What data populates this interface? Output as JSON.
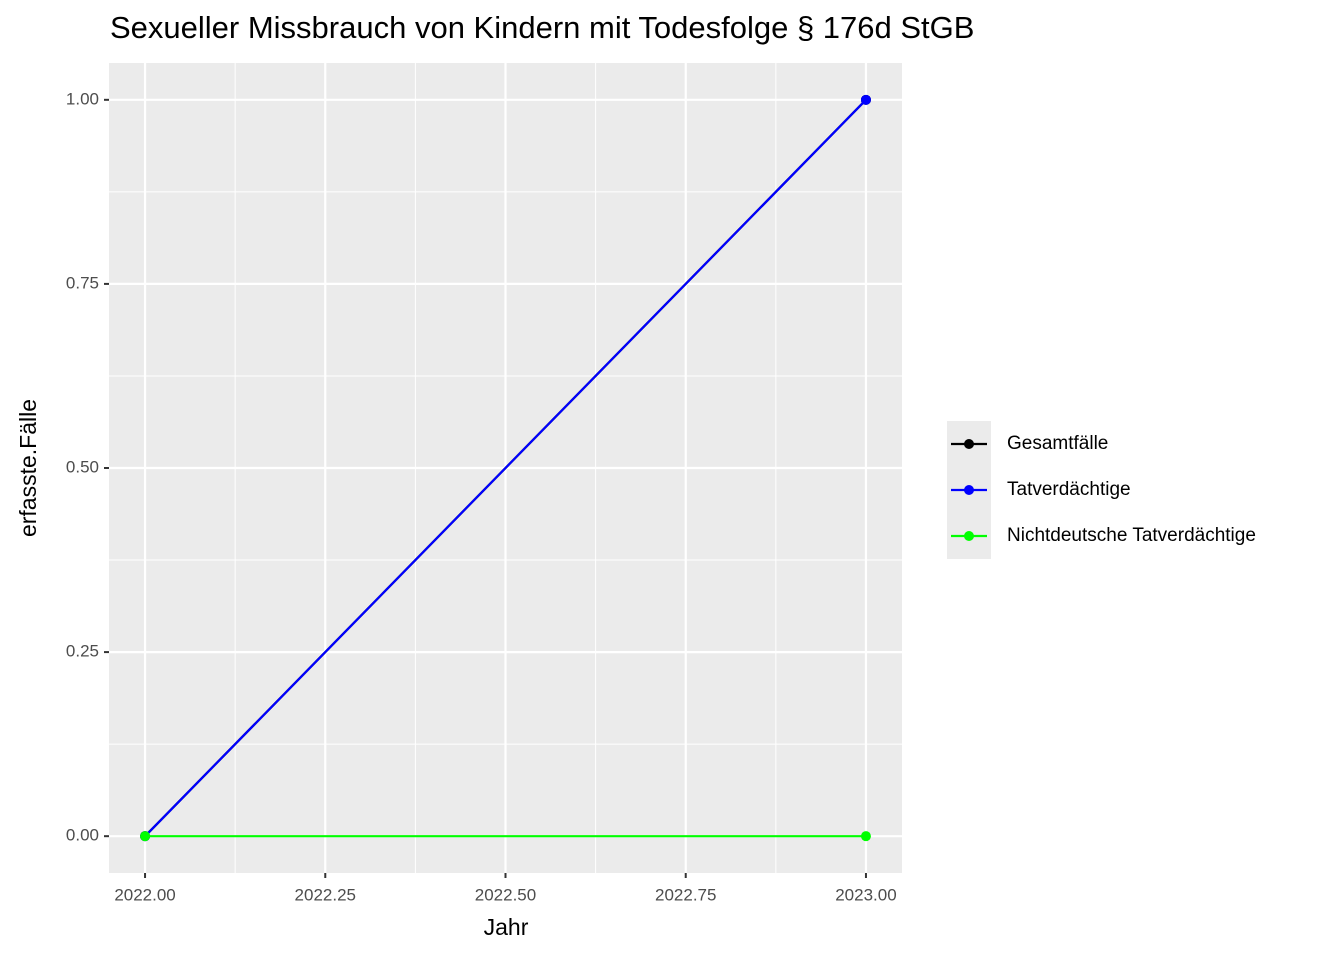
{
  "chart_data": {
    "type": "line",
    "title": "Sexueller Missbrauch von Kindern mit Todesfolge § 176d StGB",
    "x_label": "Jahr",
    "y_label": "erfasste.Fälle",
    "x": [
      2022,
      2023
    ],
    "series": [
      {
        "name": "Gesamtfälle",
        "color": "#000000",
        "values": [
          0,
          1
        ]
      },
      {
        "name": "Tatverdächtige",
        "color": "#0000ff",
        "values": [
          0,
          1
        ]
      },
      {
        "name": "Nichtdeutsche Tatverdächtige",
        "color": "#00ff00",
        "values": [
          0,
          0
        ]
      }
    ],
    "xlim": [
      2021.95,
      2023.05
    ],
    "ylim": [
      -0.05,
      1.05
    ],
    "xticks": [
      {
        "value": 2022,
        "label": "2022.00"
      },
      {
        "value": 2022.25,
        "label": "2022.25"
      },
      {
        "value": 2022.5,
        "label": "2022.50"
      },
      {
        "value": 2022.75,
        "label": "2022.75"
      },
      {
        "value": 2023,
        "label": "2023.00"
      }
    ],
    "yticks": [
      {
        "value": 0,
        "label": "0.00"
      },
      {
        "value": 0.25,
        "label": "0.25"
      },
      {
        "value": 0.5,
        "label": "0.50"
      },
      {
        "value": 0.75,
        "label": "0.75"
      },
      {
        "value": 1,
        "label": "1.00"
      }
    ],
    "grid": true,
    "legend_position": "right"
  }
}
